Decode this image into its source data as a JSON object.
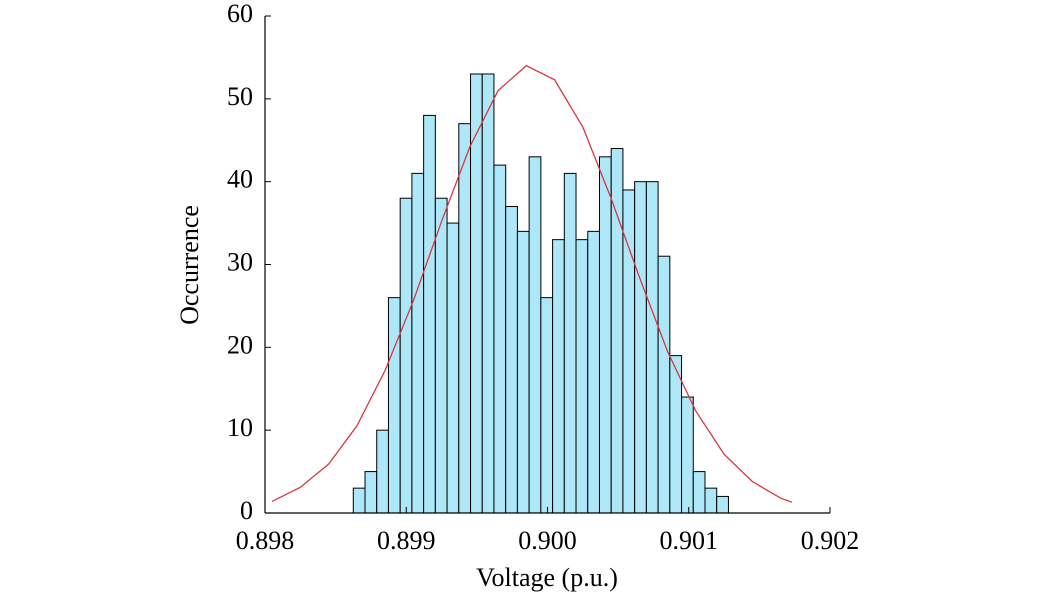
{
  "chart_data": {
    "type": "histogram",
    "xlabel": "Voltage (p.u.)",
    "ylabel": "Occurrence",
    "bins": [
      0.898625,
      0.898708,
      0.898791,
      0.898874,
      0.898957,
      0.89904,
      0.899123,
      0.899206,
      0.899289,
      0.899372,
      0.899455,
      0.899538,
      0.899621,
      0.899704,
      0.899787,
      0.89987,
      0.899953,
      0.900036,
      0.900119,
      0.900202,
      0.900285,
      0.900368,
      0.900451,
      0.900534,
      0.900617,
      0.9007,
      0.900783,
      0.900866,
      0.900949,
      0.901032,
      0.901115,
      0.901198,
      0.901281
    ],
    "counts": [
      3,
      5,
      10,
      26,
      38,
      41,
      48,
      38,
      35,
      47,
      53,
      53,
      42,
      37,
      34,
      43,
      26,
      33,
      41,
      33,
      34,
      43,
      44,
      39,
      40,
      40,
      31,
      19,
      14,
      5,
      3,
      2
    ],
    "color": "#aee7f8",
    "edgecolor": "#000000",
    "fit": {
      "x": [
        0.89805,
        0.89825,
        0.89845,
        0.89865,
        0.89885,
        0.89905,
        0.89925,
        0.89945,
        0.89965,
        0.89985,
        0.90005,
        0.90025,
        0.90045,
        0.90065,
        0.90085,
        0.90105,
        0.90125,
        0.90145,
        0.90165,
        0.90173
      ],
      "values": [
        1.4,
        3.1,
        5.9,
        10.5,
        17.2,
        25.6,
        35.2,
        44.2,
        51.0,
        54.0,
        52.3,
        46.6,
        38.0,
        28.5,
        19.5,
        12.3,
        7.1,
        3.8,
        1.8,
        1.3
      ],
      "color": "#d9363e"
    },
    "xlim": [
      0.898,
      0.902
    ],
    "xticks": [
      0.898,
      0.899,
      {
        "value": 0.9,
        "label": "0.900"
      },
      0.901,
      0.902
    ],
    "ylim": [
      0,
      60
    ],
    "yticks": [
      0,
      10,
      20,
      30,
      40,
      50,
      60
    ]
  }
}
